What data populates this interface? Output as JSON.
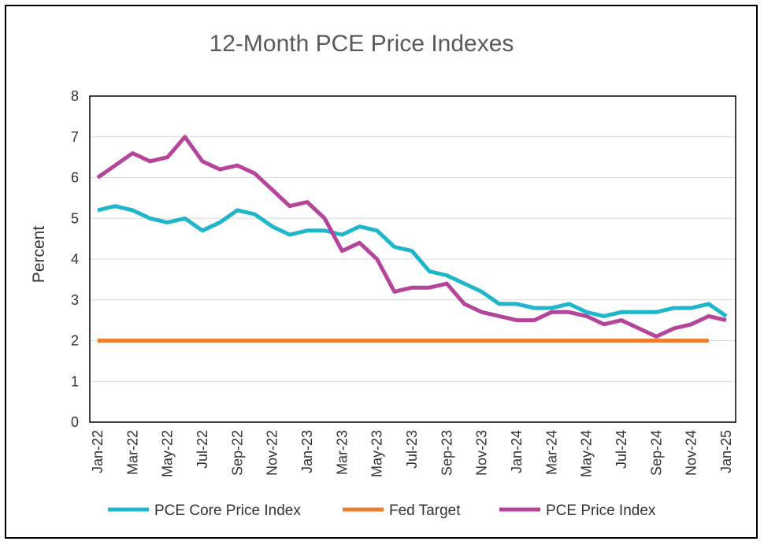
{
  "chart_data": {
    "type": "line",
    "title": "12-Month PCE Price Indexes",
    "ylabel": "Percent",
    "xlabel": "",
    "ylim": [
      0,
      8
    ],
    "y_ticks": [
      "0",
      "1",
      "2",
      "3",
      "4",
      "5",
      "6",
      "7",
      "8"
    ],
    "grid": true,
    "legend_position": "bottom",
    "x": [
      "Jan-22",
      "Feb-22",
      "Mar-22",
      "Apr-22",
      "May-22",
      "Jun-22",
      "Jul-22",
      "Aug-22",
      "Sep-22",
      "Oct-22",
      "Nov-22",
      "Dec-22",
      "Jan-23",
      "Feb-23",
      "Mar-23",
      "Apr-23",
      "May-23",
      "Jun-23",
      "Jul-23",
      "Aug-23",
      "Sep-23",
      "Oct-23",
      "Nov-23",
      "Dec-23",
      "Jan-24",
      "Feb-24",
      "Mar-24",
      "Apr-24",
      "May-24",
      "Jun-24",
      "Jul-24",
      "Aug-24",
      "Sep-24",
      "Oct-24",
      "Nov-24",
      "Dec-24",
      "Jan-25"
    ],
    "x_tick_labels": [
      "Jan-22",
      "Mar-22",
      "May-22",
      "Jul-22",
      "Sep-22",
      "Nov-22",
      "Jan-23",
      "Mar-23",
      "May-23",
      "Jul-23",
      "Sep-23",
      "Nov-23",
      "Jan-24",
      "Mar-24",
      "May-24",
      "Jul-24",
      "Sep-24",
      "Nov-24",
      "Jan-25"
    ],
    "series": [
      {
        "name": "PCE Core Price Index",
        "color": "#1fb6cc",
        "values": [
          5.2,
          5.3,
          5.2,
          5.0,
          4.9,
          5.0,
          4.7,
          4.9,
          5.2,
          5.1,
          4.8,
          4.6,
          4.7,
          4.7,
          4.6,
          4.8,
          4.7,
          4.3,
          4.2,
          3.7,
          3.6,
          3.4,
          3.2,
          2.9,
          2.9,
          2.8,
          2.8,
          2.9,
          2.7,
          2.6,
          2.7,
          2.7,
          2.7,
          2.8,
          2.8,
          2.9,
          2.6
        ]
      },
      {
        "name": "Fed Target",
        "color": "#ed7d31",
        "values": [
          2,
          2,
          2,
          2,
          2,
          2,
          2,
          2,
          2,
          2,
          2,
          2,
          2,
          2,
          2,
          2,
          2,
          2,
          2,
          2,
          2,
          2,
          2,
          2,
          2,
          2,
          2,
          2,
          2,
          2,
          2,
          2,
          2,
          2,
          2,
          2,
          null
        ]
      },
      {
        "name": "PCE Price Index",
        "color": "#b5459b",
        "values": [
          6.0,
          6.3,
          6.6,
          6.4,
          6.5,
          7.0,
          6.4,
          6.2,
          6.3,
          6.1,
          5.7,
          5.3,
          5.4,
          5.0,
          4.2,
          4.4,
          4.0,
          3.2,
          3.3,
          3.3,
          3.4,
          2.9,
          2.7,
          2.6,
          2.5,
          2.5,
          2.7,
          2.7,
          2.6,
          2.4,
          2.5,
          2.3,
          2.1,
          2.3,
          2.4,
          2.6,
          2.5
        ]
      }
    ]
  }
}
